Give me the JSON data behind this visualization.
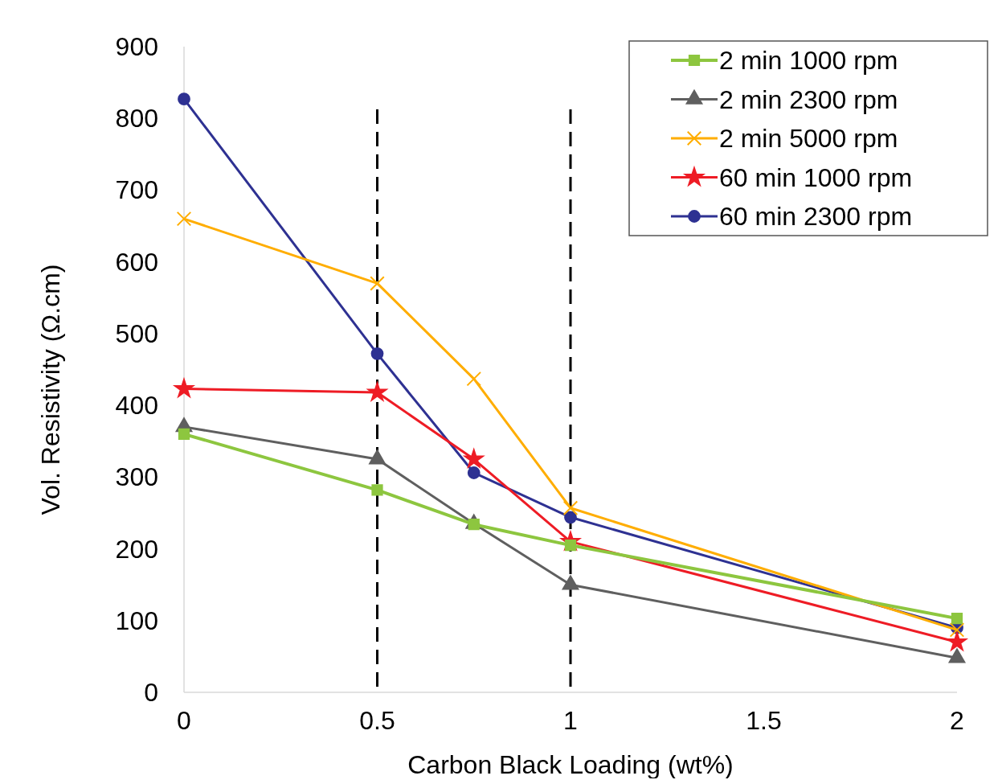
{
  "chart_data": {
    "type": "line",
    "xlabel": "Carbon Black Loading (wt%)",
    "ylabel": "Vol. Resistivity (Ω.cm)",
    "x": [
      0,
      0.5,
      0.75,
      1,
      2
    ],
    "xlim": [
      0,
      2
    ],
    "xticks": [
      0,
      0.5,
      1,
      1.5,
      2
    ],
    "ylim": [
      0,
      900
    ],
    "yticks": [
      0,
      100,
      200,
      300,
      400,
      500,
      600,
      700,
      800,
      900
    ],
    "grid": false,
    "legend": "top right",
    "ref_lines": [
      {
        "axis": "x",
        "value": 0.5,
        "color": "#000000",
        "line_style": "dashed"
      },
      {
        "axis": "x",
        "value": 1,
        "color": "#000000",
        "line_style": "dashed"
      }
    ],
    "series": [
      {
        "name": "2 min 1000 rpm",
        "color": "#8dc63f",
        "marker": "square",
        "values": [
          360,
          282,
          234,
          205,
          103
        ]
      },
      {
        "name": "2 min 2300 rpm",
        "color": "#5f5f5f",
        "marker": "triangle",
        "values": [
          370,
          325,
          235,
          150,
          48
        ]
      },
      {
        "name": "2 min 5000 rpm",
        "color": "#ffad00",
        "marker": "cross",
        "values": [
          660,
          570,
          437,
          257,
          87
        ]
      },
      {
        "name": "60 min 1000 rpm",
        "color": "#ee1c25",
        "marker": "star",
        "values": [
          423,
          418,
          325,
          210,
          70
        ]
      },
      {
        "name": "60 min 2300 rpm",
        "color": "#2e3192",
        "marker": "circle",
        "values": [
          827,
          472,
          306,
          244,
          90
        ]
      }
    ]
  }
}
